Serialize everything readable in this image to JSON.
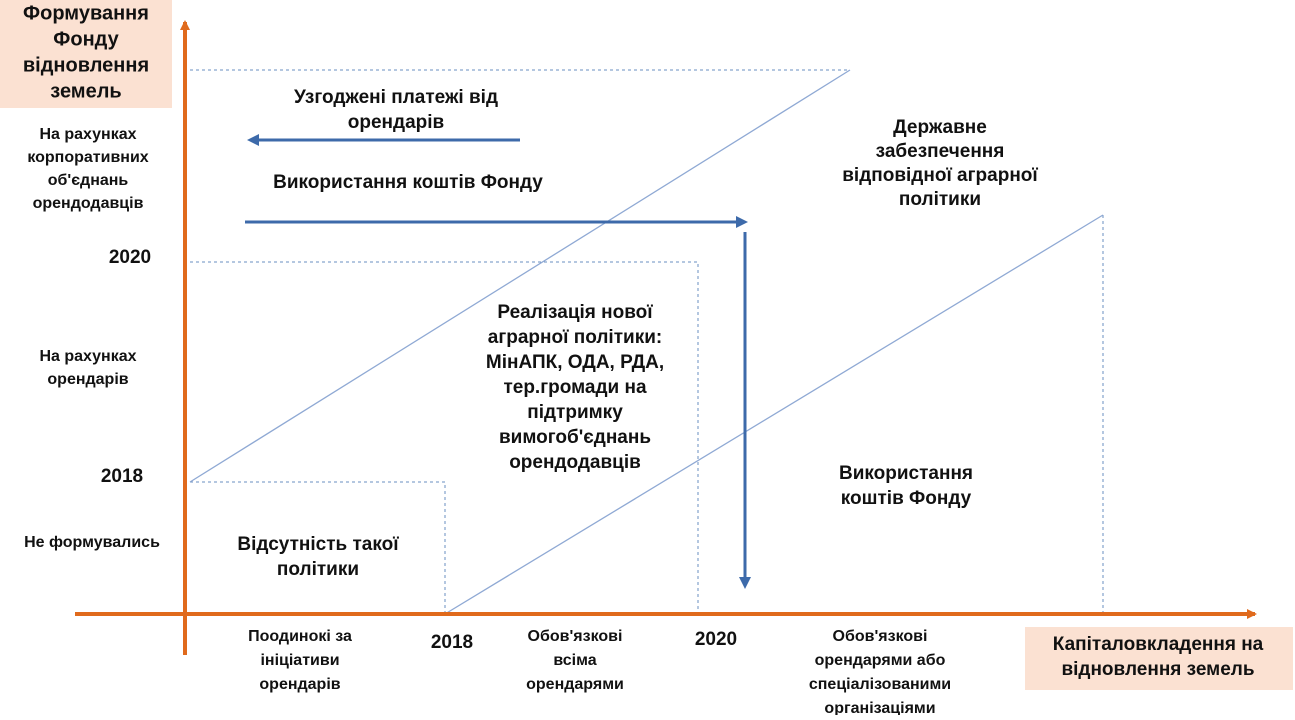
{
  "y_axis_title": [
    "Формування",
    "Фонду",
    "відновлення",
    "земель"
  ],
  "x_axis_title": [
    "Капіталовкладення на",
    "відновлення земель"
  ],
  "y_labels": [
    [
      "На рахунках",
      "корпоративних",
      "об'єднань",
      "орендодавців"
    ],
    [
      "2020"
    ],
    [
      "На рахунках",
      "орендарів"
    ],
    [
      "2018"
    ],
    [
      "Не формувались"
    ]
  ],
  "x_labels": [
    [
      "Поодинокі за",
      "ініціативи",
      "орендарів"
    ],
    [
      "2018"
    ],
    [
      "Обов'язкові",
      "всіма",
      "орендарями"
    ],
    [
      "2020"
    ],
    [
      "Обов'язкові",
      "орендарями або",
      "спеціалізованими",
      "організаціями"
    ]
  ],
  "annotations": [
    [
      "Узгоджені платежі від",
      "орендарів"
    ],
    [
      "Використання коштів Фонду"
    ],
    [
      "Державне",
      "забезпечення",
      "відповідної аграрної",
      "політики"
    ],
    [
      "Реалізація нової",
      "аграрної політики:",
      "МінАПК, ОДА, РДА,",
      "тер.громади на",
      "підтримку",
      "вимогоб'єднань",
      "орендодавців"
    ],
    [
      "Використання",
      "коштів Фонду"
    ],
    [
      "Відсутність такої",
      "політики"
    ]
  ]
}
